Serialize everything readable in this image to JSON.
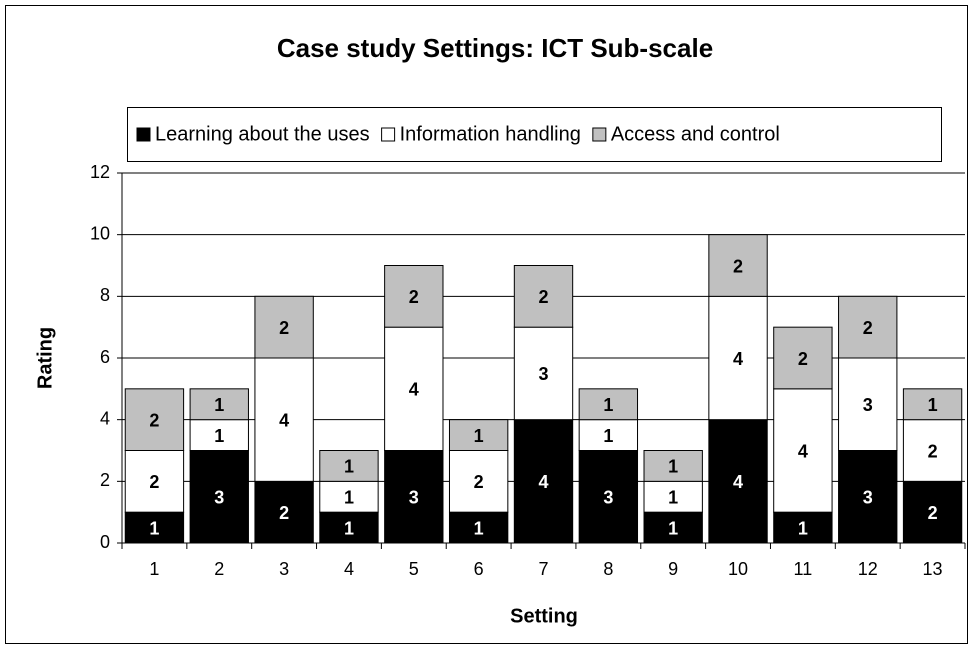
{
  "chart_data": {
    "type": "stacked_bar",
    "title": "Case study Settings: ICT Sub-scale",
    "x_label": "Setting",
    "y_label": "Rating",
    "categories": [
      "1",
      "2",
      "3",
      "4",
      "5",
      "6",
      "7",
      "8",
      "9",
      "10",
      "11",
      "12",
      "13"
    ],
    "series": [
      {
        "name": "Learning about the uses",
        "color": "#000000",
        "values": [
          1,
          3,
          2,
          1,
          3,
          1,
          4,
          3,
          1,
          4,
          1,
          3,
          2
        ]
      },
      {
        "name": "Information handling",
        "color": "#ffffff",
        "values": [
          2,
          1,
          4,
          1,
          4,
          2,
          3,
          1,
          1,
          4,
          4,
          3,
          2
        ]
      },
      {
        "name": "Access and control",
        "color": "#c0c0c0",
        "values": [
          2,
          1,
          2,
          1,
          2,
          1,
          2,
          1,
          1,
          2,
          2,
          2,
          1
        ]
      }
    ],
    "ylim": [
      0,
      12
    ],
    "yticks": [
      0,
      2,
      4,
      6,
      8,
      10,
      12
    ],
    "grid": true,
    "legend": "top"
  }
}
